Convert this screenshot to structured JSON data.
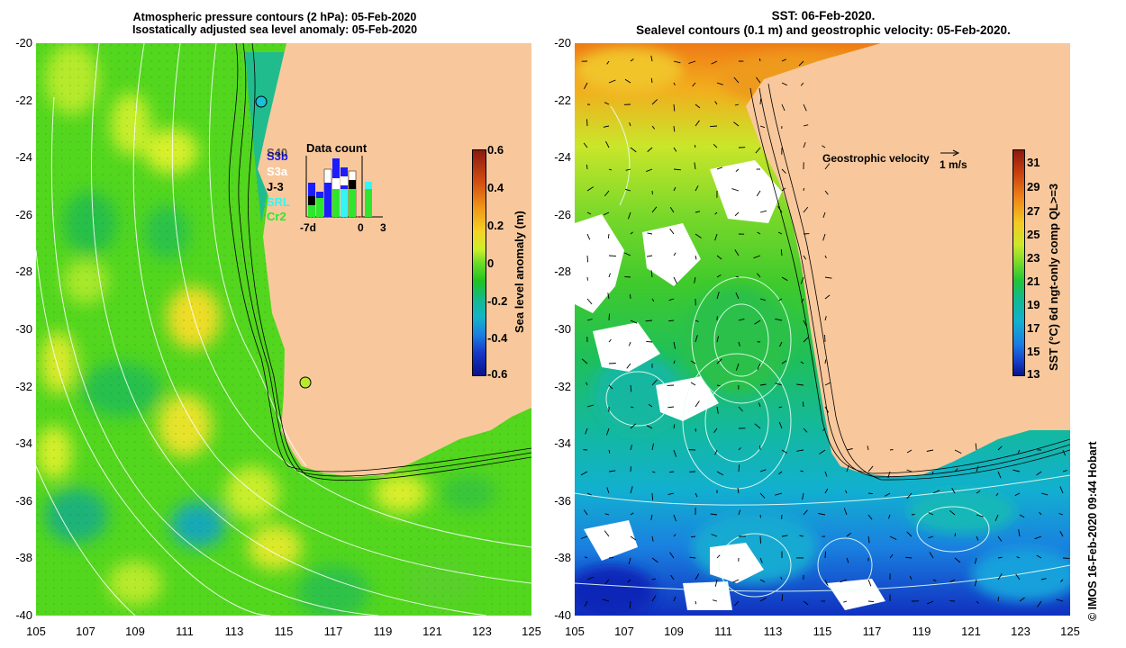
{
  "left_panel": {
    "title_line1": "Atmospheric pressure contours (2 hPa): 05-Feb-2020",
    "title_line2": "Isostatically adjusted sea level anomaly: 05-Feb-2020",
    "colorbar": {
      "title": "Sea level anomaly (m)",
      "ticks": [
        "0.6",
        "0.4",
        "0.2",
        "0",
        "-0.2",
        "-0.4",
        "-0.6"
      ],
      "colors": [
        "#8b1a0f",
        "#d24d10",
        "#f09a18",
        "#f5d225",
        "#cdef2a",
        "#6fdc28",
        "#1fc41e",
        "#14b98a",
        "#12b5c8",
        "#1b7fe0",
        "#1638c8",
        "#0a128a"
      ]
    },
    "data_count": {
      "title": "Data count",
      "satellites": [
        {
          "name": "S3b",
          "color": "#1c1cff"
        },
        {
          "name": "S3a",
          "color": "#ffffff"
        },
        {
          "name": "J-3",
          "color": "#000000"
        },
        {
          "name": "SRL",
          "color": "#33f5f5"
        },
        {
          "name": "Cr2",
          "color": "#2ee62e"
        }
      ],
      "overlap_label": "S40",
      "axis_labels": [
        "-7d",
        "0",
        "3"
      ]
    }
  },
  "right_panel": {
    "title_line1": "SST: 06-Feb-2020.",
    "title_line2": "Sealevel contours (0.1 m) and geostrophic velocity: 05-Feb-2020.",
    "geostrophic_label": "Geostrophic velocity",
    "scale_label": "1 m/s",
    "colorbar": {
      "title": "SST (°C) 6d ngt-only comp QL>=3",
      "ticks": [
        "31",
        "29",
        "27",
        "25",
        "23",
        "21",
        "19",
        "17",
        "15",
        "13"
      ],
      "colors": [
        "#8b1a0f",
        "#c93f10",
        "#ef8a18",
        "#f4c823",
        "#cde82a",
        "#78d92a",
        "#22c43a",
        "#13b98f",
        "#12b1cf",
        "#1a7ee2",
        "#1745cf",
        "#0a128a"
      ]
    }
  },
  "axes": {
    "lat_labels": [
      "-20",
      "-22",
      "-24",
      "-26",
      "-28",
      "-30",
      "-32",
      "-34",
      "-36",
      "-38",
      "-40"
    ],
    "lon_labels": [
      "105",
      "107",
      "109",
      "111",
      "113",
      "115",
      "117",
      "119",
      "121",
      "123",
      "125"
    ]
  },
  "credit": "© IMOS 16-Feb-2020 09:44 Hobart"
}
